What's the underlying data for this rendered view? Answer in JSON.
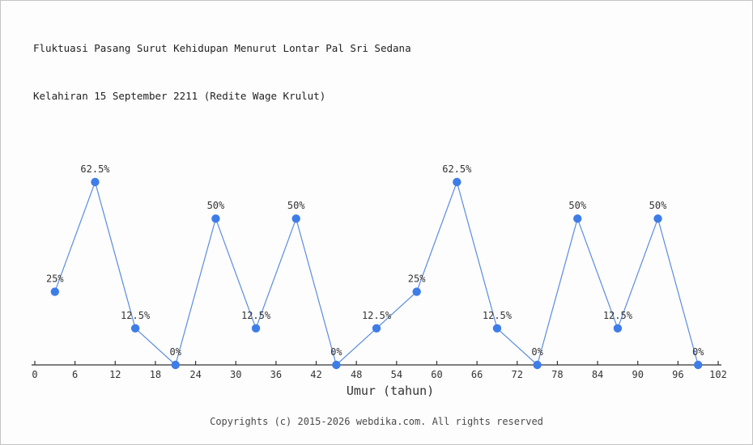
{
  "title": {
    "line1": "Fluktuasi Pasang Surut Kehidupan Menurut Lontar Pal Sri Sedana",
    "line2": "Kelahiran 15 September 2211 (Redite Wage Krulut)"
  },
  "footer": "Copyrights (c) 2015-2026 webdika.com. All rights reserved",
  "chart_data": {
    "type": "line",
    "title": "Fluktuasi Pasang Surut Kehidupan Menurut Lontar Pal Sri Sedana Kelahiran 15 September 2211 (Redite Wage Krulut)",
    "x": [
      3,
      9,
      15,
      21,
      27,
      33,
      39,
      45,
      51,
      57,
      63,
      69,
      75,
      81,
      87,
      93,
      99
    ],
    "values": [
      25,
      62.5,
      12.5,
      0,
      50,
      12.5,
      50,
      0,
      12.5,
      25,
      62.5,
      12.5,
      0,
      50,
      12.5,
      50,
      0
    ],
    "point_labels": [
      "25%",
      "62.5%",
      "12.5%",
      "0%",
      "50%",
      "12.5%",
      "50%",
      "0%",
      "12.5%",
      "25%",
      "62.5%",
      "12.5%",
      "0%",
      "50%",
      "12.5%",
      "50%",
      "0%"
    ],
    "xlabel": "Umur (tahun)",
    "ylabel": "",
    "x_ticks": [
      0,
      6,
      12,
      18,
      24,
      30,
      36,
      42,
      48,
      54,
      60,
      66,
      72,
      78,
      84,
      90,
      96,
      102
    ],
    "xlim": [
      0,
      102
    ],
    "ylim": [
      0,
      70
    ],
    "grid": false,
    "legend": false,
    "colors": {
      "line": "#5b8ce0",
      "marker": "#3e7de8",
      "axis": "#333333",
      "label": "#333333"
    }
  }
}
